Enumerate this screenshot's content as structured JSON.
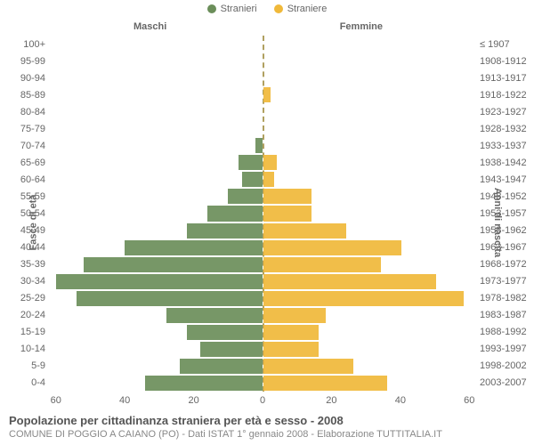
{
  "chart": {
    "type": "population-pyramid",
    "background_color": "#ffffff",
    "text_color": "#666666",
    "font_family": "Arial",
    "label_fontsize": 11,
    "legend": {
      "male": {
        "label": "Stranieri",
        "color": "#6b8e5a"
      },
      "female": {
        "label": "Straniere",
        "color": "#f0b93a"
      }
    },
    "column_headers": {
      "left": "Maschi",
      "right": "Femmine"
    },
    "y_left_title": "Fasce di età",
    "y_right_title": "Anni di nascita",
    "x_axis": {
      "max": 62,
      "ticks": [
        0,
        20,
        40,
        60
      ]
    },
    "center_line_color": "#b0a060",
    "age_groups": [
      {
        "age": "100+",
        "birth": "≤ 1907",
        "m": 0,
        "f": 0
      },
      {
        "age": "95-99",
        "birth": "1908-1912",
        "m": 0,
        "f": 0
      },
      {
        "age": "90-94",
        "birth": "1913-1917",
        "m": 0,
        "f": 0
      },
      {
        "age": "85-89",
        "birth": "1918-1922",
        "m": 0,
        "f": 2
      },
      {
        "age": "80-84",
        "birth": "1923-1927",
        "m": 0,
        "f": 0
      },
      {
        "age": "75-79",
        "birth": "1928-1932",
        "m": 0,
        "f": 0
      },
      {
        "age": "70-74",
        "birth": "1933-1937",
        "m": 2,
        "f": 0
      },
      {
        "age": "65-69",
        "birth": "1938-1942",
        "m": 7,
        "f": 4
      },
      {
        "age": "60-64",
        "birth": "1943-1947",
        "m": 6,
        "f": 3
      },
      {
        "age": "55-59",
        "birth": "1948-1952",
        "m": 10,
        "f": 14
      },
      {
        "age": "50-54",
        "birth": "1953-1957",
        "m": 16,
        "f": 14
      },
      {
        "age": "45-49",
        "birth": "1958-1962",
        "m": 22,
        "f": 24
      },
      {
        "age": "40-44",
        "birth": "1963-1967",
        "m": 40,
        "f": 40
      },
      {
        "age": "35-39",
        "birth": "1968-1972",
        "m": 52,
        "f": 34
      },
      {
        "age": "30-34",
        "birth": "1973-1977",
        "m": 60,
        "f": 50
      },
      {
        "age": "25-29",
        "birth": "1978-1982",
        "m": 54,
        "f": 58
      },
      {
        "age": "20-24",
        "birth": "1983-1987",
        "m": 28,
        "f": 18
      },
      {
        "age": "15-19",
        "birth": "1988-1992",
        "m": 22,
        "f": 16
      },
      {
        "age": "10-14",
        "birth": "1993-1997",
        "m": 18,
        "f": 16
      },
      {
        "age": "5-9",
        "birth": "1998-2002",
        "m": 24,
        "f": 26
      },
      {
        "age": "0-4",
        "birth": "2003-2007",
        "m": 34,
        "f": 36
      }
    ],
    "footer": {
      "title": "Popolazione per cittadinanza straniera per età e sesso - 2008",
      "subtitle": "COMUNE DI POGGIO A CAIANO (PO) - Dati ISTAT 1° gennaio 2008 - Elaborazione TUTTITALIA.IT"
    }
  }
}
